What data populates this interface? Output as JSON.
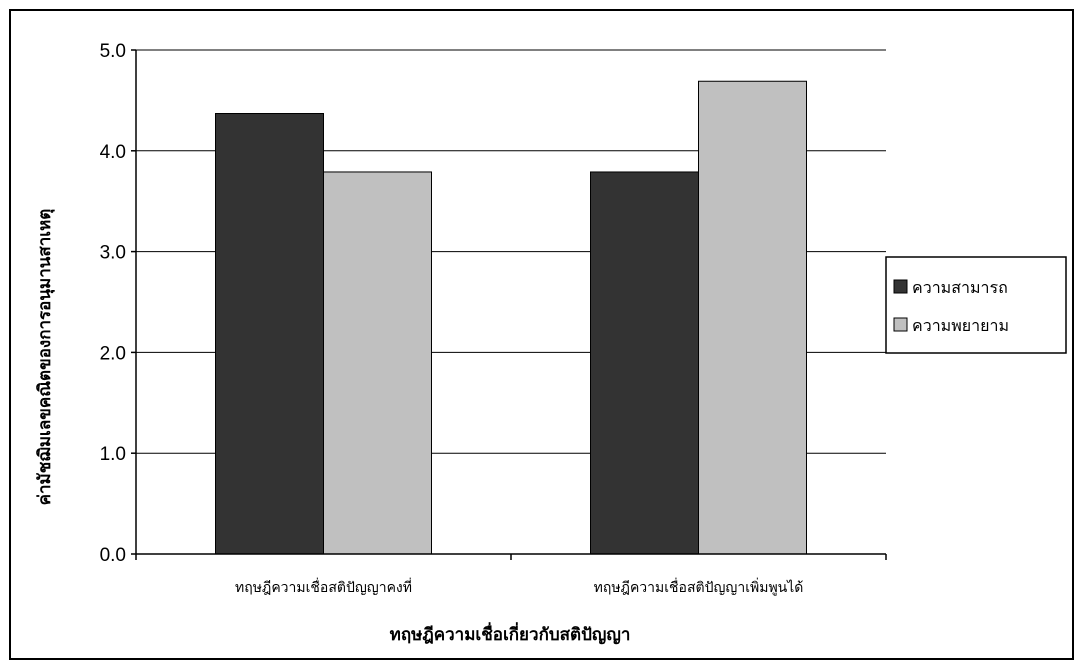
{
  "chart_data": {
    "type": "bar",
    "title": "",
    "xlabel": "ทฤษฎีความเชื่อเกี่ยวกับสติปัญญา",
    "ylabel": "ค่ามัชฌิมเลขคณิตของการอนุมานสาเหตุ",
    "categories": [
      "ทฤษฎีความเชื่อสติปัญญาคงที่",
      "ทฤษฎีความเชื่อสติปัญญาเพิ่มพูนได้"
    ],
    "series": [
      {
        "name": "ความสามารถ",
        "values": [
          4.37,
          3.79
        ],
        "color": "#333333"
      },
      {
        "name": "ความพยายาม",
        "values": [
          3.79,
          4.69
        ],
        "color": "#c0c0c0"
      }
    ],
    "ylim": [
      0,
      5
    ],
    "yticks": [
      "0.0",
      "1.0",
      "2.0",
      "3.0",
      "4.0",
      "5.0"
    ],
    "grid": true,
    "legend": "right"
  }
}
